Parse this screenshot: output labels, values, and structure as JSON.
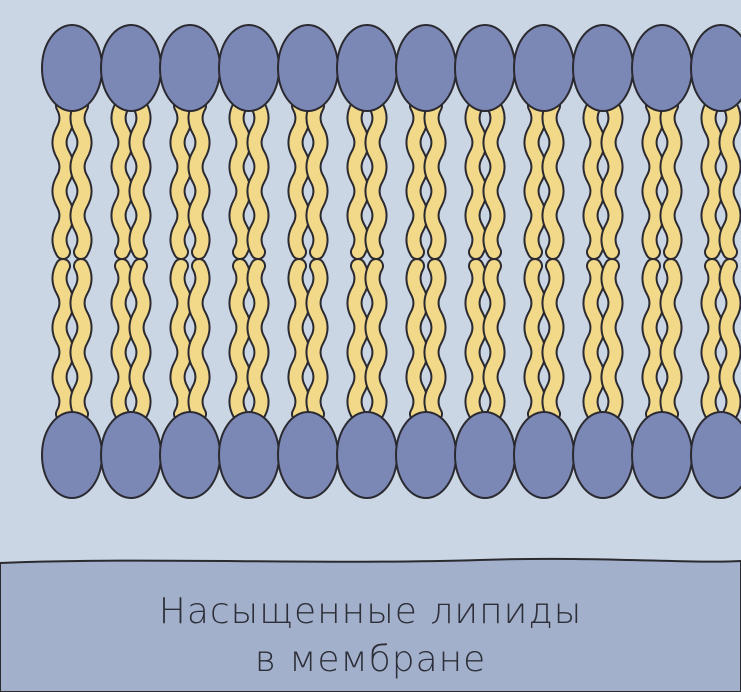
{
  "caption": {
    "line1": "Насыщенные липиды",
    "line2": "в мембране"
  },
  "colors": {
    "background": "#cbd6e4",
    "lipid_head": "#7b88b6",
    "lipid_tail": "#f2d98a",
    "outline": "#2a2a30",
    "caption_panel": "#a3b0cc"
  },
  "diagram": {
    "structure": "lipid-bilayer",
    "lipids_per_leaflet_visible": 12,
    "leaflets": [
      "outer",
      "inner"
    ],
    "tails_per_lipid": 2,
    "lipid_type": "saturated"
  }
}
